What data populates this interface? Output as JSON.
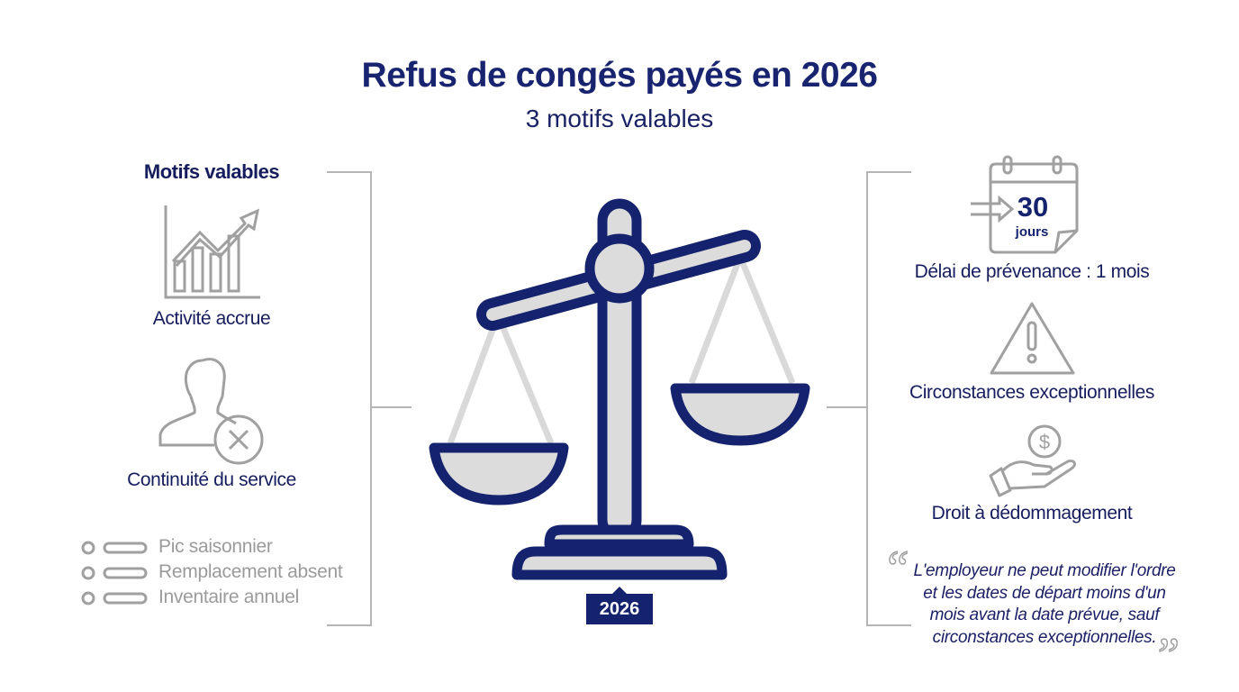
{
  "header": {
    "title": "Refus de congés payés en 2026",
    "subtitle": "3 motifs valables"
  },
  "left": {
    "heading": "Motifs valables",
    "items": [
      {
        "label": "Activité accrue",
        "icon": "growth-chart-icon"
      },
      {
        "label": "Continuité du service",
        "icon": "person-remove-icon"
      }
    ],
    "list": [
      "Pic saisonnier",
      "Remplacement absent",
      "Inventaire annuel"
    ]
  },
  "center": {
    "year_badge": "2026",
    "icon": "balance-scale-icon"
  },
  "right": {
    "calendar": {
      "number": "30",
      "unit": "jours"
    },
    "items": [
      {
        "label": "Délai de prévenance : 1 mois",
        "icon": "calendar-icon"
      },
      {
        "label": "Circonstances exceptionnelles",
        "icon": "warning-icon"
      },
      {
        "label": "Droit à dédommagement",
        "icon": "hand-coin-icon"
      }
    ],
    "quote": "L'employeur ne peut modifier l'ordre et les dates de départ moins d'un mois avant la date prévue, sauf circonstances exceptionnelles."
  },
  "colors": {
    "navy": "#15236e",
    "gray": "#9b9b9b",
    "light": "#dcdcdc"
  }
}
